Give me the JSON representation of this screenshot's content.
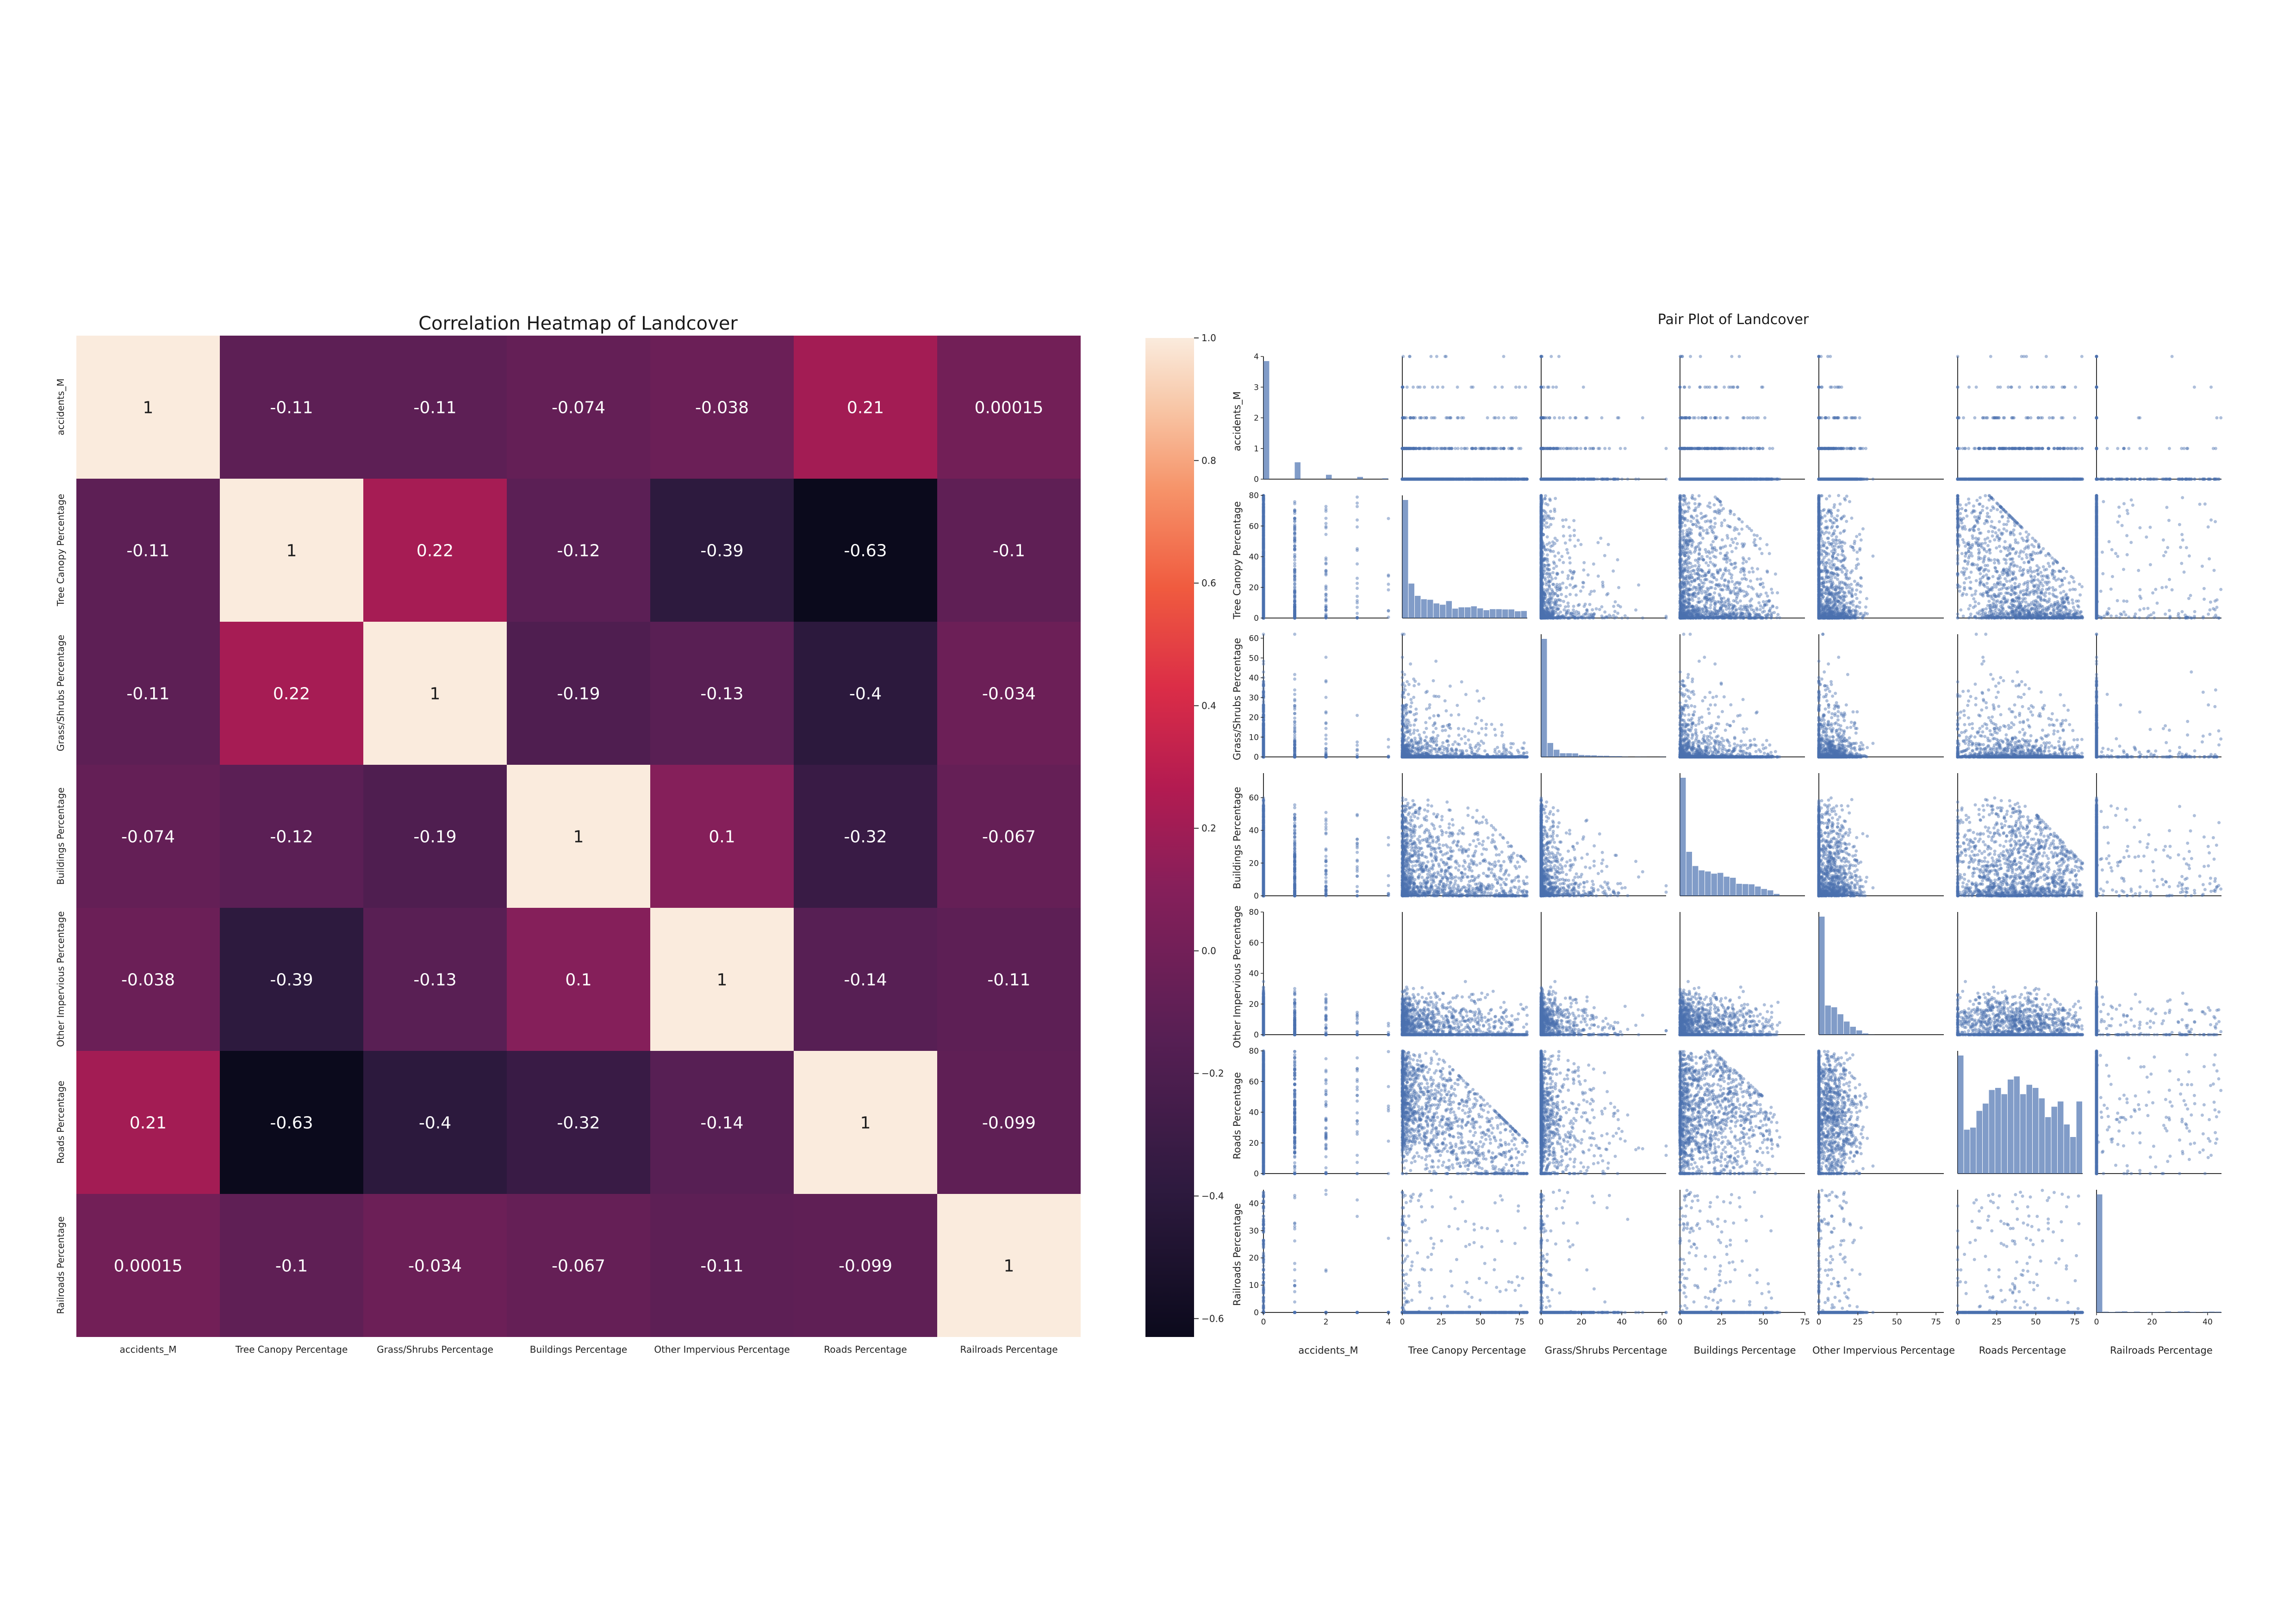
{
  "heatmap": {
    "title": "Correlation Heatmap of Landcover",
    "colorbar_ticks": [
      "1.0",
      "0.8",
      "0.6",
      "0.4",
      "0.2",
      "0.0",
      "−0.2",
      "−0.4",
      "−0.6"
    ],
    "cells": [
      [
        "1",
        "-0.11",
        "-0.11",
        "-0.074",
        "-0.038",
        "0.21",
        "0.00015"
      ],
      [
        "-0.11",
        "1",
        "0.22",
        "-0.12",
        "-0.39",
        "-0.63",
        "-0.1"
      ],
      [
        "-0.11",
        "0.22",
        "1",
        "-0.19",
        "-0.13",
        "-0.4",
        "-0.034"
      ],
      [
        "-0.074",
        "-0.12",
        "-0.19",
        "1",
        "0.1",
        "-0.32",
        "-0.067"
      ],
      [
        "-0.038",
        "-0.39",
        "-0.13",
        "0.1",
        "1",
        "-0.14",
        "-0.11"
      ],
      [
        "0.21",
        "-0.63",
        "-0.4",
        "-0.32",
        "-0.14",
        "1",
        "-0.099"
      ],
      [
        "0.00015",
        "-0.1",
        "-0.034",
        "-0.067",
        "-0.11",
        "-0.099",
        "1"
      ]
    ]
  },
  "pairplot": {
    "title": "Pair Plot of Landcover",
    "x_ticks": [
      [
        "0",
        "2",
        "4"
      ],
      [
        "0",
        "25",
        "50",
        "75"
      ],
      [
        "0",
        "20",
        "40",
        "60"
      ],
      [
        "0",
        "25",
        "50",
        "75"
      ],
      [
        "0",
        "25",
        "50",
        "75"
      ],
      [
        "0",
        "25",
        "50",
        "75"
      ],
      [
        "0",
        "20",
        "40"
      ]
    ],
    "y_ticks": [
      [
        "0",
        "1",
        "2",
        "3",
        "4"
      ],
      [
        "0",
        "20",
        "40",
        "60",
        "80"
      ],
      [
        "0",
        "10",
        "20",
        "30",
        "40",
        "50",
        "60"
      ],
      [
        "0",
        "20",
        "40",
        "60"
      ],
      [
        "0",
        "20",
        "40",
        "60",
        "80"
      ],
      [
        "0",
        "20",
        "40",
        "60",
        "80"
      ],
      [
        "0",
        "10",
        "20",
        "30",
        "40"
      ]
    ]
  },
  "colors": {
    "scatter": "#4c72b0"
  },
  "chart_data": [
    {
      "type": "heatmap",
      "title": "Correlation Heatmap of Landcover",
      "variables": [
        "accidents_M",
        "Tree Canopy Percentage",
        "Grass/Shrubs Percentage",
        "Buildings Percentage",
        "Other Impervious Percentage",
        "Roads Percentage",
        "Railroads Percentage"
      ],
      "matrix": [
        [
          1,
          -0.11,
          -0.11,
          -0.074,
          -0.038,
          0.21,
          0.00015
        ],
        [
          -0.11,
          1,
          0.22,
          -0.12,
          -0.39,
          -0.63,
          -0.1
        ],
        [
          -0.11,
          0.22,
          1,
          -0.19,
          -0.13,
          -0.4,
          -0.034
        ],
        [
          -0.074,
          -0.12,
          -0.19,
          1,
          0.1,
          -0.32,
          -0.067
        ],
        [
          -0.038,
          -0.39,
          -0.13,
          0.1,
          1,
          -0.14,
          -0.11
        ],
        [
          0.21,
          -0.63,
          -0.4,
          -0.32,
          -0.14,
          1,
          -0.099
        ],
        [
          0.00015,
          -0.1,
          -0.034,
          -0.067,
          -0.11,
          -0.099,
          1
        ]
      ],
      "colorscale": "rocket",
      "vmin": -0.63,
      "vmax": 1.0
    },
    {
      "type": "scatter",
      "title": "Pair Plot of Landcover",
      "variables": [
        "accidents_M",
        "Tree Canopy Percentage",
        "Grass/Shrubs Percentage",
        "Buildings Percentage",
        "Other Impervious Percentage",
        "Roads Percentage",
        "Railroads Percentage"
      ],
      "ranges": [
        [
          0,
          4
        ],
        [
          0,
          80
        ],
        [
          0,
          62
        ],
        [
          0,
          75
        ],
        [
          0,
          80
        ],
        [
          0,
          80
        ],
        [
          0,
          45
        ]
      ],
      "diagonal": "histogram"
    }
  ]
}
